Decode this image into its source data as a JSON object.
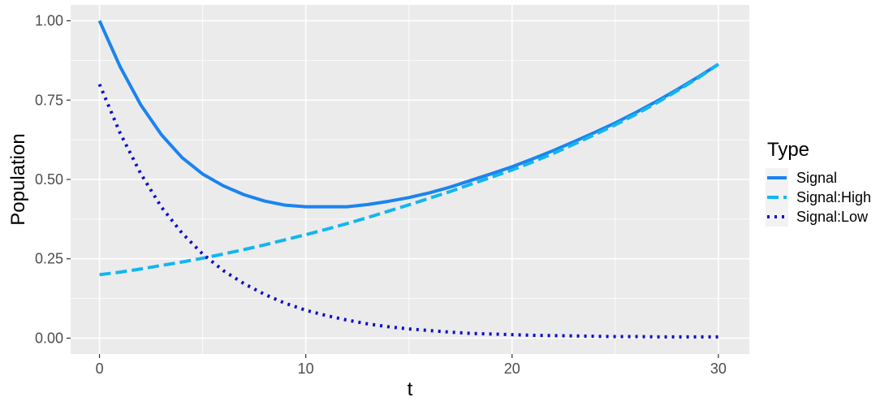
{
  "chart_data": {
    "type": "line",
    "xlabel": "t",
    "ylabel": "Population",
    "xlim": [
      -1.4,
      31.5
    ],
    "ylim": [
      -0.05,
      1.05
    ],
    "x_ticks": [
      0,
      10,
      20,
      30
    ],
    "x_tick_labels": [
      "0",
      "10",
      "20",
      "30"
    ],
    "y_ticks": [
      0,
      0.25,
      0.5,
      0.75,
      1.0
    ],
    "y_tick_labels": [
      "0.00",
      "0.25",
      "0.50",
      "0.75",
      "1.00"
    ],
    "grid": true,
    "background": "#ebebeb",
    "legend": {
      "title": "Type",
      "position": "right"
    },
    "x": [
      0,
      1,
      2,
      3,
      4,
      5,
      6,
      7,
      8,
      9,
      10,
      11,
      12,
      13,
      14,
      15,
      16,
      17,
      18,
      19,
      20,
      21,
      22,
      23,
      24,
      25,
      26,
      27,
      28,
      29,
      30
    ],
    "series": [
      {
        "name": "Signal",
        "color": "#1a84f0",
        "dash": "solid",
        "values": [
          1.0,
          0.855,
          0.735,
          0.641,
          0.569,
          0.517,
          0.48,
          0.452,
          0.432,
          0.419,
          0.414,
          0.414,
          0.414,
          0.421,
          0.431,
          0.443,
          0.458,
          0.476,
          0.497,
          0.518,
          0.54,
          0.565,
          0.591,
          0.619,
          0.648,
          0.678,
          0.711,
          0.746,
          0.783,
          0.822,
          0.863
        ]
      },
      {
        "name": "Signal:High",
        "color": "#12b6f0",
        "dash": "dashed",
        "values": [
          0.2,
          0.208,
          0.218,
          0.229,
          0.24,
          0.252,
          0.265,
          0.279,
          0.294,
          0.31,
          0.326,
          0.343,
          0.361,
          0.38,
          0.4,
          0.42,
          0.441,
          0.462,
          0.485,
          0.507,
          0.53,
          0.555,
          0.582,
          0.611,
          0.641,
          0.672,
          0.705,
          0.741,
          0.779,
          0.819,
          0.863
        ]
      },
      {
        "name": "Signal:Low",
        "color": "#0d0dcc",
        "dash": "dotted",
        "values": [
          0.8,
          0.646,
          0.518,
          0.413,
          0.331,
          0.265,
          0.213,
          0.172,
          0.138,
          0.11,
          0.088,
          0.071,
          0.057,
          0.045,
          0.036,
          0.029,
          0.024,
          0.019,
          0.015,
          0.013,
          0.011,
          0.009,
          0.008,
          0.007,
          0.006,
          0.005,
          0.005,
          0.004,
          0.004,
          0.004,
          0.004
        ]
      }
    ]
  }
}
